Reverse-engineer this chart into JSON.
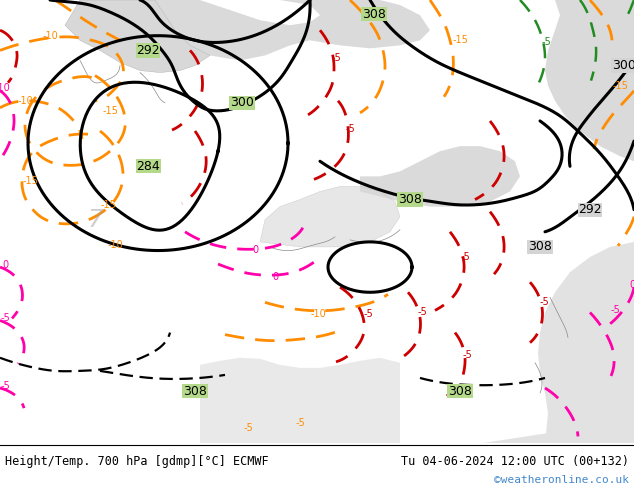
{
  "title_left": "Height/Temp. 700 hPa [gdmp][°C] ECMWF",
  "title_right": "Tu 04-06-2024 12:00 UTC (00+132)",
  "copyright": "©weatheronline.co.uk",
  "land_color": "#b5d98b",
  "grey_land_color": "#c8c8c8",
  "sea_color": "#e8e8e8",
  "fig_width": 6.34,
  "fig_height": 4.9,
  "dpi": 100,
  "bottom_bar_color": "#ffffff",
  "title_fontsize": 8.5,
  "copyright_color": "#4488cc",
  "copyright_fontsize": 8
}
